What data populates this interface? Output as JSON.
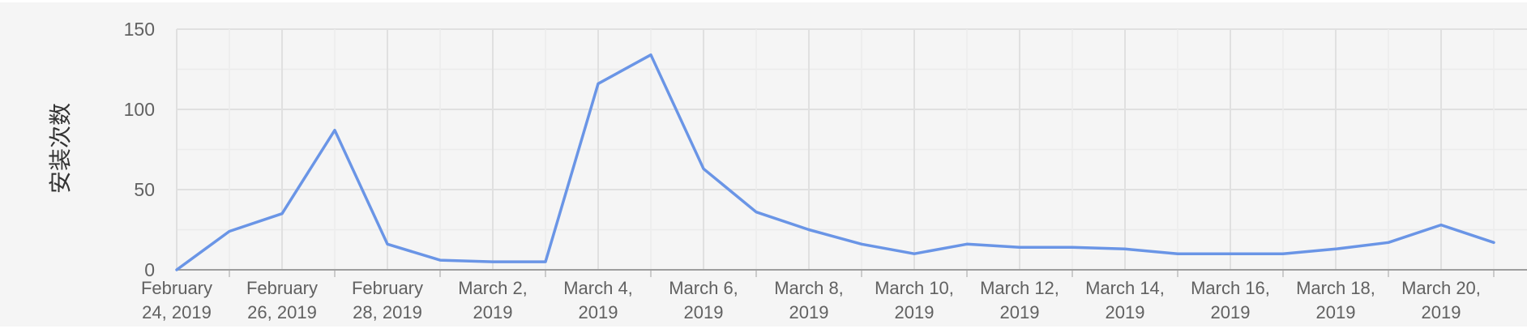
{
  "chart_data": {
    "type": "line",
    "title": "",
    "ylabel": "安装次数",
    "xlabel": "",
    "ylim": [
      0,
      150
    ],
    "yticks": [
      0,
      50,
      100,
      150
    ],
    "grid": true,
    "x": [
      "2019-02-24",
      "2019-02-25",
      "2019-02-26",
      "2019-02-27",
      "2019-02-28",
      "2019-03-01",
      "2019-03-02",
      "2019-03-03",
      "2019-03-04",
      "2019-03-05",
      "2019-03-06",
      "2019-03-07",
      "2019-03-08",
      "2019-03-09",
      "2019-03-10",
      "2019-03-11",
      "2019-03-12",
      "2019-03-13",
      "2019-03-14",
      "2019-03-15",
      "2019-03-16",
      "2019-03-17",
      "2019-03-18",
      "2019-03-19",
      "2019-03-20",
      "2019-03-21"
    ],
    "x_tick_labels": [
      [
        "February",
        "24, 2019"
      ],
      [
        "February",
        "26, 2019"
      ],
      [
        "February",
        "28, 2019"
      ],
      [
        "March 2,",
        "2019"
      ],
      [
        "March 4,",
        "2019"
      ],
      [
        "March 6,",
        "2019"
      ],
      [
        "March 8,",
        "2019"
      ],
      [
        "March 10,",
        "2019"
      ],
      [
        "March 12,",
        "2019"
      ],
      [
        "March 14,",
        "2019"
      ],
      [
        "March 16,",
        "2019"
      ],
      [
        "March 18,",
        "2019"
      ],
      [
        "March 20,",
        "2019"
      ]
    ],
    "series": [
      {
        "values": [
          0,
          24,
          35,
          87,
          16,
          6,
          5,
          5,
          116,
          134,
          63,
          36,
          25,
          16,
          10,
          16,
          14,
          14,
          13,
          10,
          10,
          10,
          13,
          17,
          28,
          17
        ],
        "color": "#6a95e6"
      }
    ],
    "background_color": "#f5f5f5",
    "grid_color": "#e0e0e0",
    "axis_color": "#9e9e9e"
  }
}
